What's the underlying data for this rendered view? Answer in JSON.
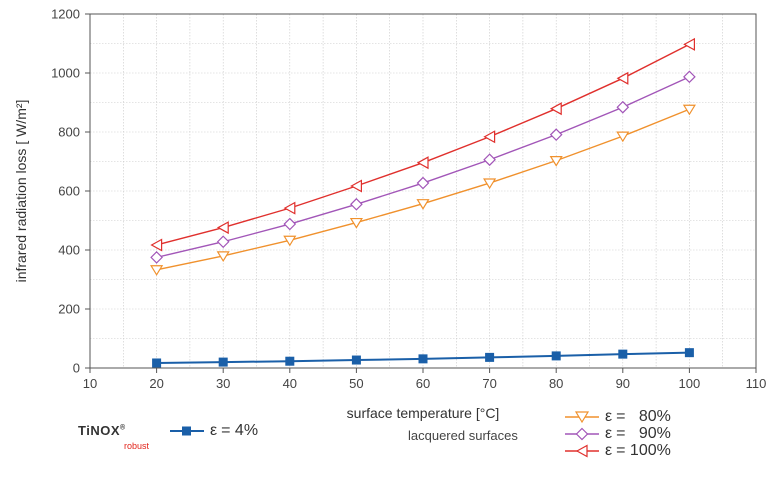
{
  "chart_data": {
    "type": "line",
    "xlabel": "surface temperature [°C]",
    "ylabel": "infrared radiation loss [ W/m²]",
    "xlim": [
      10,
      110
    ],
    "ylim": [
      0,
      1200
    ],
    "xticks": [
      10,
      20,
      30,
      40,
      50,
      60,
      70,
      80,
      90,
      100,
      110
    ],
    "yticks": [
      0,
      200,
      400,
      600,
      800,
      1000,
      1200
    ],
    "x": [
      20,
      30,
      40,
      50,
      60,
      70,
      80,
      90,
      100
    ],
    "grid": true,
    "series": [
      {
        "name": "ε = 4%",
        "color": "#1a5fa8",
        "marker": "square-filled",
        "values": [
          17,
          20,
          23,
          27,
          31,
          36,
          41,
          47,
          52
        ]
      },
      {
        "name": "ε = 80%",
        "color": "#f0912d",
        "marker": "triangle-down",
        "values": [
          333,
          380,
          433,
          493,
          557,
          627,
          703,
          786,
          877
        ]
      },
      {
        "name": "ε = 90%",
        "color": "#a256b8",
        "marker": "diamond",
        "values": [
          375,
          428,
          488,
          555,
          627,
          706,
          791,
          884,
          987
        ]
      },
      {
        "name": "ε = 100%",
        "color": "#e0302d",
        "marker": "triangle-left",
        "values": [
          417,
          476,
          542,
          617,
          696,
          784,
          879,
          982,
          1097
        ]
      }
    ]
  },
  "legend": {
    "brand": "TiNOX",
    "brand_sub": "robust",
    "brand_reg": "®",
    "group_label": "lacquered surfaces",
    "entries": [
      {
        "eps": "ε",
        "text": "= 4%"
      },
      {
        "eps": "ε",
        "text": "=   80%"
      },
      {
        "eps": "ε",
        "text": "=   90%"
      },
      {
        "eps": "ε",
        "text": "= 100%"
      }
    ]
  }
}
